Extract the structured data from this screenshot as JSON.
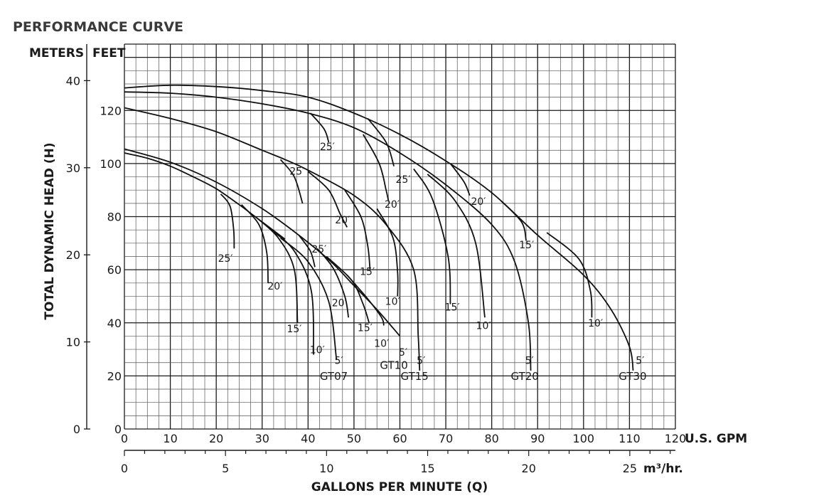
{
  "chart_data": {
    "type": "line",
    "title": "PERFORMANCE CURVE",
    "y_units": {
      "left": "METERS",
      "right": "FEET"
    },
    "ylabel": "TOTAL DYNAMIC HEAD (H)",
    "xlabel": "GALLONS PER MINUTE (Q)",
    "x_unit_primary": "U.S. GPM",
    "x_unit_secondary": "m³/hr.",
    "xlim": [
      0,
      120
    ],
    "ylim_feet": [
      0,
      145
    ],
    "x_ticks": [
      "0",
      "10",
      "20",
      "30",
      "40",
      "50",
      "60",
      "70",
      "80",
      "90",
      "100",
      "110",
      "120"
    ],
    "x_ticks_values": [
      0,
      10,
      20,
      30,
      40,
      50,
      60,
      70,
      80,
      90,
      100,
      110,
      120
    ],
    "feet_ticks": [
      "0",
      "20",
      "40",
      "60",
      "80",
      "100",
      "120"
    ],
    "feet_ticks_values": [
      0,
      20,
      40,
      60,
      80,
      100,
      120
    ],
    "meter_ticks": [
      "0",
      "10",
      "20",
      "30",
      "40"
    ],
    "meter_ticks_values": [
      0,
      10,
      20,
      30,
      40
    ],
    "m3hr_ticks": [
      "0",
      "5",
      "10",
      "15",
      "20",
      "25"
    ],
    "m3hr_ticks_values": [
      0,
      5,
      10,
      15,
      20,
      25
    ],
    "grid": true,
    "models": [
      {
        "name": "GT07",
        "main_curve": [
          [
            0,
            104
          ],
          [
            5,
            102
          ],
          [
            10,
            99
          ],
          [
            15,
            95
          ],
          [
            20,
            90.5
          ],
          [
            25,
            84.5
          ],
          [
            30,
            78
          ],
          [
            35,
            71.5
          ]
        ],
        "labels": [
          "25′",
          "20′",
          "15′",
          "10′",
          "5′"
        ],
        "drops": [
          {
            "label": "25′",
            "points": [
              [
                21,
                88.5
              ],
              [
                23,
                84
              ],
              [
                23.8,
                75
              ],
              [
                23.9,
                68
              ]
            ]
          },
          {
            "label": "20′",
            "points": [
              [
                25.5,
                84.5
              ],
              [
                29.3,
                77
              ],
              [
                31,
                66.5
              ],
              [
                31.3,
                55
              ]
            ]
          },
          {
            "label": "15′",
            "points": [
              [
                28.5,
                80
              ],
              [
                33.5,
                72
              ],
              [
                37,
                60
              ],
              [
                37.7,
                40
              ]
            ]
          },
          {
            "label": "10′",
            "points": [
              [
                32,
                75
              ],
              [
                37,
                67
              ],
              [
                40.7,
                52
              ],
              [
                41.2,
                28
              ]
            ]
          },
          {
            "label": "5′",
            "points": [
              [
                34,
                72
              ],
              [
                40,
                63
              ],
              [
                44.5,
                48
              ],
              [
                46.2,
                26
              ]
            ]
          }
        ]
      },
      {
        "name": "GT10",
        "main_curve": [
          [
            0,
            105.5
          ],
          [
            10,
            100.5
          ],
          [
            20,
            93
          ],
          [
            30,
            83
          ],
          [
            38,
            73
          ],
          [
            45,
            63
          ],
          [
            50,
            54
          ],
          [
            55,
            45
          ],
          [
            60,
            35
          ]
        ],
        "labels": [
          "25′",
          "20′",
          "15′",
          "10′",
          "5′"
        ],
        "drops": [
          {
            "label": "25′",
            "points": [
              [
                38,
                73
              ],
              [
                40.5,
                67
              ],
              [
                41.5,
                61
              ]
            ]
          },
          {
            "label": "20′",
            "points": [
              [
                42,
                68
              ],
              [
                45.5,
                60.5
              ],
              [
                48,
                50
              ],
              [
                48.8,
                42
              ]
            ]
          },
          {
            "label": "15′",
            "points": [
              [
                44,
                65
              ],
              [
                49.5,
                56
              ],
              [
                52,
                47
              ],
              [
                53.3,
                40
              ]
            ]
          },
          {
            "label": "10′",
            "points": [
              [
                48.5,
                58
              ],
              [
                53,
                49
              ],
              [
                56,
                42
              ],
              [
                56.5,
                39
              ]
            ]
          }
        ]
      },
      {
        "name": "GT15",
        "main_curve": [
          [
            0,
            121
          ],
          [
            10,
            117
          ],
          [
            20,
            112
          ],
          [
            30,
            105
          ],
          [
            35,
            101.5
          ],
          [
            40,
            97.5
          ],
          [
            50,
            88
          ],
          [
            57,
            77
          ],
          [
            63,
            60
          ],
          [
            64,
            35
          ],
          [
            64.3,
            22
          ]
        ],
        "labels": [
          "25′",
          "20′",
          "15′",
          "10′",
          "5′"
        ],
        "drops": [
          {
            "label": "25′",
            "points": [
              [
                34,
                101.5
              ],
              [
                37,
                95
              ],
              [
                38.8,
                85
              ]
            ]
          },
          {
            "label": "20′",
            "points": [
              [
                40,
                97
              ],
              [
                44.5,
                90
              ],
              [
                47,
                81
              ],
              [
                48.5,
                76
              ]
            ]
          },
          {
            "label": "15′",
            "points": [
              [
                48,
                90
              ],
              [
                51.5,
                80
              ],
              [
                53,
                69
              ],
              [
                53.5,
                60
              ]
            ]
          },
          {
            "label": "10′",
            "points": [
              [
                55,
                83
              ],
              [
                58.5,
                72
              ],
              [
                59.5,
                59
              ],
              [
                59.5,
                50
              ]
            ]
          }
        ]
      },
      {
        "name": "GT20",
        "main_curve": [
          [
            0,
            127
          ],
          [
            10,
            126.5
          ],
          [
            20,
            125
          ],
          [
            30,
            122.5
          ],
          [
            40,
            119
          ],
          [
            50,
            113.5
          ],
          [
            60,
            104
          ],
          [
            70,
            92
          ],
          [
            80,
            77
          ],
          [
            85,
            63
          ],
          [
            88,
            40
          ],
          [
            88.5,
            22
          ]
        ],
        "labels": [
          "25′",
          "20′",
          "15′",
          "10′",
          "5′"
        ],
        "drops": [
          {
            "label": "25′",
            "points": [
              [
                40.5,
                119
              ],
              [
                43.5,
                113
              ],
              [
                44.5,
                108
              ]
            ]
          },
          {
            "label": "20′",
            "points": [
              [
                52,
                111
              ],
              [
                55.5,
                100
              ],
              [
                57,
                90
              ],
              [
                57.5,
                86
              ]
            ]
          },
          {
            "label": "15′",
            "points": [
              [
                63,
                98
              ],
              [
                67,
                87
              ],
              [
                70.5,
                65
              ],
              [
                71,
                47
              ]
            ]
          },
          {
            "label": "10′",
            "points": [
              [
                66,
                96
              ],
              [
                72,
                86
              ],
              [
                76.5,
                70
              ],
              [
                78.5,
                42
              ]
            ]
          }
        ]
      },
      {
        "name": "GT30",
        "main_curve": [
          [
            0,
            128.5
          ],
          [
            10,
            129.5
          ],
          [
            20,
            129
          ],
          [
            30,
            127.5
          ],
          [
            40,
            125
          ],
          [
            50,
            119
          ],
          [
            60,
            111
          ],
          [
            70,
            101
          ],
          [
            80,
            89
          ],
          [
            90,
            73
          ],
          [
            100,
            58
          ],
          [
            106,
            45
          ],
          [
            110,
            31
          ],
          [
            110.8,
            22
          ]
        ],
        "labels": [
          "25′",
          "20′",
          "15′",
          "10′",
          "5′"
        ],
        "drops": [
          {
            "label": "25′",
            "points": [
              [
                53,
                117
              ],
              [
                57,
                108
              ],
              [
                58.7,
                99
              ]
            ]
          },
          {
            "label": "20′",
            "points": [
              [
                71,
                100
              ],
              [
                74,
                93
              ],
              [
                75.2,
                88
              ]
            ]
          },
          {
            "label": "15′",
            "points": [
              [
                82,
                86
              ],
              [
                86.5,
                78
              ],
              [
                87.5,
                71
              ]
            ]
          },
          {
            "label": "10′",
            "points": [
              [
                92,
                74
              ],
              [
                99,
                64
              ],
              [
                101.5,
                52
              ],
              [
                101.8,
                42
              ]
            ]
          }
        ]
      }
    ],
    "curve_labels": [
      {
        "text": "25′",
        "x": 22,
        "y": 63
      },
      {
        "text": "20′",
        "x": 32.8,
        "y": 52.5
      },
      {
        "text": "15′",
        "x": 37,
        "y": 36.5
      },
      {
        "text": "10′",
        "x": 42,
        "y": 28.5
      },
      {
        "text": "5′",
        "x": 46.7,
        "y": 24.5
      },
      {
        "text": "GT07",
        "x": 45.6,
        "y": 18.5
      },
      {
        "text": "25′",
        "x": 42.4,
        "y": 66.5
      },
      {
        "text": "20′",
        "x": 46.8,
        "y": 46.2
      },
      {
        "text": "15′",
        "x": 52.4,
        "y": 36.8
      },
      {
        "text": "10′",
        "x": 56,
        "y": 31
      },
      {
        "text": "5′",
        "x": 60.7,
        "y": 27.6
      },
      {
        "text": "GT10",
        "x": 58.7,
        "y": 22.7
      },
      {
        "text": "25′",
        "x": 37.6,
        "y": 95.8
      },
      {
        "text": "20′",
        "x": 47.5,
        "y": 77.4
      },
      {
        "text": "15′",
        "x": 52.9,
        "y": 58
      },
      {
        "text": "10′",
        "x": 58.4,
        "y": 46.8
      },
      {
        "text": "5′",
        "x": 64.6,
        "y": 24.5
      },
      {
        "text": "GT15",
        "x": 63.2,
        "y": 18.5
      },
      {
        "text": "25′",
        "x": 44.2,
        "y": 105
      },
      {
        "text": "20′",
        "x": 58.3,
        "y": 83.3
      },
      {
        "text": "15′",
        "x": 71.4,
        "y": 44.6
      },
      {
        "text": "10′",
        "x": 78.2,
        "y": 37.6
      },
      {
        "text": "5′",
        "x": 88.2,
        "y": 24.5
      },
      {
        "text": "GT20",
        "x": 87.2,
        "y": 18.5
      },
      {
        "text": "25′",
        "x": 60.7,
        "y": 92.8
      },
      {
        "text": "20′",
        "x": 77.1,
        "y": 84.4
      },
      {
        "text": "15′",
        "x": 87.6,
        "y": 68.1
      },
      {
        "text": "10′",
        "x": 102.6,
        "y": 38.6
      },
      {
        "text": "5′",
        "x": 112.3,
        "y": 24.5
      },
      {
        "text": "GT30",
        "x": 110.7,
        "y": 18.5
      }
    ]
  }
}
